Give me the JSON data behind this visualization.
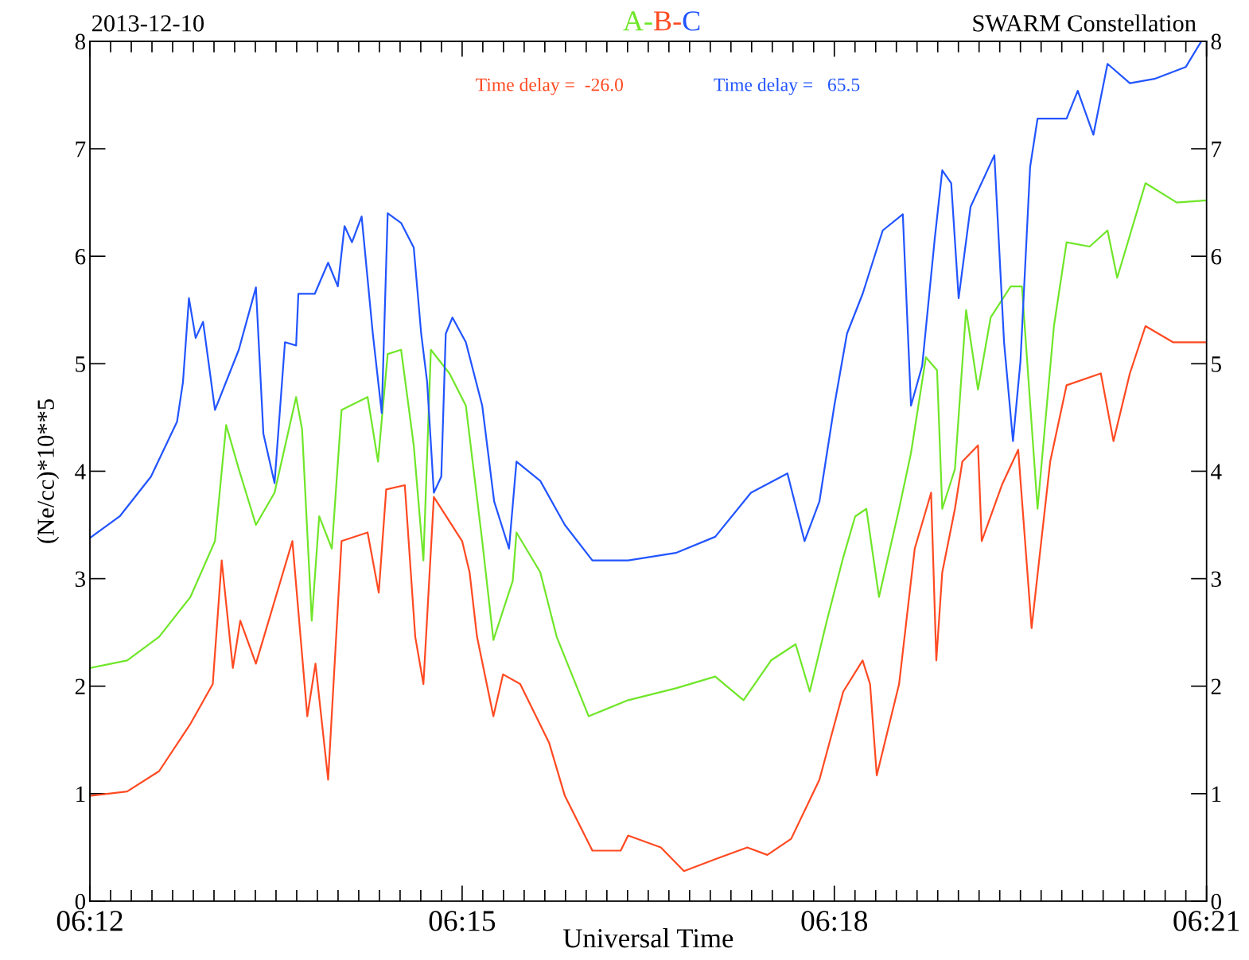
{
  "chart_data": {
    "type": "line",
    "title": "2013-12-10",
    "subtitle": "SWARM Constellation",
    "xlabel": "Universal Time",
    "ylabel": "(Ne/cc)*10**5",
    "annotations": [
      "Time delay =  -26.0",
      "Time delay =   65.5"
    ],
    "legend": "top",
    "grid": false,
    "marker": "none",
    "line_style": "solid",
    "xlim": [
      6.2,
      6.35
    ],
    "xticks": [
      {
        "value": 6.2,
        "label": "06:12"
      },
      {
        "value": 6.25,
        "label": "06:15"
      },
      {
        "value": 6.3,
        "label": "06:18"
      },
      {
        "value": 6.35,
        "label": "06:21"
      }
    ],
    "ylim": [
      0,
      8
    ],
    "yticks": [
      0,
      1,
      2,
      3,
      4,
      5,
      6,
      7,
      8
    ],
    "y2lim": [
      0,
      8
    ],
    "y2ticks": [
      0,
      1,
      2,
      3,
      4,
      5,
      6,
      7,
      8
    ],
    "series": [
      {
        "name": "A-",
        "color": "#70e62a",
        "x": [
          6.2,
          6.205,
          6.2093,
          6.2135,
          6.2168,
          6.2183,
          6.22,
          6.2223,
          6.2248,
          6.2277,
          6.2285,
          6.2298,
          6.2308,
          6.2325,
          6.2338,
          6.2373,
          6.2387,
          6.24,
          6.2418,
          6.2435,
          6.2448,
          6.2458,
          6.2483,
          6.2505,
          6.2527,
          6.2542,
          6.2568,
          6.2573,
          6.2605,
          6.2627,
          6.267,
          6.2723,
          6.2787,
          6.284,
          6.2878,
          6.2915,
          6.2948,
          6.2967,
          6.299,
          6.3012,
          6.3028,
          6.3043,
          6.306,
          6.3087,
          6.3103,
          6.3123,
          6.3138,
          6.3145,
          6.3162,
          6.3177,
          6.3193,
          6.321,
          6.3237,
          6.3252,
          6.3273,
          6.3295,
          6.3312,
          6.3343,
          6.3367,
          6.338,
          6.3418,
          6.346,
          6.35
        ],
        "values": [
          2.17,
          2.24,
          2.46,
          2.83,
          3.35,
          4.43,
          4.02,
          3.5,
          3.8,
          4.69,
          4.39,
          2.61,
          3.58,
          3.28,
          4.57,
          4.69,
          4.09,
          5.09,
          5.13,
          4.24,
          3.17,
          5.13,
          4.91,
          4.61,
          3.35,
          2.43,
          2.98,
          3.43,
          3.06,
          2.46,
          1.72,
          1.87,
          1.98,
          2.09,
          1.87,
          2.24,
          2.39,
          1.95,
          2.61,
          3.2,
          3.58,
          3.65,
          2.83,
          3.65,
          4.17,
          5.06,
          4.94,
          3.65,
          4.02,
          5.5,
          4.76,
          5.43,
          5.72,
          5.72,
          3.65,
          5.35,
          6.13,
          6.09,
          6.24,
          5.8,
          6.68,
          6.5,
          6.52
        ]
      },
      {
        "name": "B-",
        "color": "#ff4a22",
        "x": [
          6.2,
          6.205,
          6.2093,
          6.2135,
          6.2165,
          6.2177,
          6.2192,
          6.2202,
          6.2223,
          6.2272,
          6.2292,
          6.2303,
          6.232,
          6.2338,
          6.2373,
          6.2388,
          6.2398,
          6.2423,
          6.2437,
          6.2448,
          6.2462,
          6.25,
          6.251,
          6.252,
          6.2542,
          6.2555,
          6.2578,
          6.2617,
          6.2638,
          6.2675,
          6.2713,
          6.2723,
          6.2767,
          6.2798,
          6.284,
          6.2883,
          6.291,
          6.2942,
          6.298,
          6.3012,
          6.3038,
          6.3048,
          6.3057,
          6.3087,
          6.3108,
          6.313,
          6.3137,
          6.3145,
          6.3162,
          6.3172,
          6.3193,
          6.3198,
          6.3225,
          6.3247,
          6.3265,
          6.3278,
          6.329,
          6.3312,
          6.3358,
          6.3375,
          6.3397,
          6.3418,
          6.3455,
          6.35
        ],
        "values": [
          0.98,
          1.02,
          1.21,
          1.65,
          2.02,
          3.17,
          2.17,
          2.61,
          2.21,
          3.35,
          1.72,
          2.21,
          1.13,
          3.35,
          3.43,
          2.87,
          3.83,
          3.87,
          2.46,
          2.02,
          3.76,
          3.35,
          3.06,
          2.46,
          1.72,
          2.11,
          2.02,
          1.47,
          0.98,
          0.47,
          0.47,
          0.61,
          0.5,
          0.28,
          0.39,
          0.5,
          0.43,
          0.58,
          1.13,
          1.95,
          2.24,
          2.02,
          1.17,
          2.02,
          3.28,
          3.8,
          2.24,
          3.06,
          3.65,
          4.09,
          4.24,
          3.35,
          3.87,
          4.2,
          2.54,
          3.35,
          4.09,
          4.8,
          4.91,
          4.28,
          4.91,
          5.35,
          5.2,
          5.2
        ]
      },
      {
        "name": "C",
        "color": "#2255ff",
        "x": [
          6.2,
          6.204,
          6.2082,
          6.2117,
          6.2125,
          6.2133,
          6.2142,
          6.2152,
          6.2168,
          6.22,
          6.2223,
          6.2233,
          6.2248,
          6.2262,
          6.2277,
          6.228,
          6.2302,
          6.232,
          6.2333,
          6.2342,
          6.2352,
          6.2365,
          6.238,
          6.2392,
          6.24,
          6.2418,
          6.2435,
          6.2445,
          6.2453,
          6.2462,
          6.2472,
          6.2478,
          6.2487,
          6.2505,
          6.2527,
          6.2543,
          6.2563,
          6.2573,
          6.2605,
          6.2638,
          6.2675,
          6.2723,
          6.2787,
          6.284,
          6.2888,
          6.2937,
          6.296,
          6.298,
          6.3,
          6.3017,
          6.3038,
          6.3065,
          6.3092,
          6.3103,
          6.3118,
          6.3135,
          6.3145,
          6.3157,
          6.3167,
          6.3183,
          6.3215,
          6.3228,
          6.324,
          6.325,
          6.3263,
          6.3273,
          6.3312,
          6.3327,
          6.3348,
          6.3367,
          6.3397,
          6.343,
          6.3472,
          6.3493
        ],
        "values": [
          3.38,
          3.58,
          3.95,
          4.46,
          4.83,
          5.61,
          5.24,
          5.39,
          4.57,
          5.13,
          5.71,
          4.35,
          3.89,
          5.2,
          5.17,
          5.65,
          5.65,
          5.94,
          5.72,
          6.28,
          6.13,
          6.37,
          5.28,
          4.54,
          6.4,
          6.31,
          6.08,
          5.28,
          4.83,
          3.8,
          3.95,
          5.28,
          5.43,
          5.2,
          4.61,
          3.72,
          3.28,
          4.09,
          3.91,
          3.5,
          3.17,
          3.17,
          3.24,
          3.39,
          3.8,
          3.98,
          3.35,
          3.72,
          4.61,
          5.28,
          5.65,
          6.24,
          6.39,
          4.61,
          4.98,
          6.17,
          6.8,
          6.68,
          5.61,
          6.46,
          6.94,
          5.2,
          4.28,
          5.02,
          6.83,
          7.28,
          7.28,
          7.54,
          7.13,
          7.79,
          7.61,
          7.65,
          7.76,
          8.0
        ]
      }
    ]
  }
}
